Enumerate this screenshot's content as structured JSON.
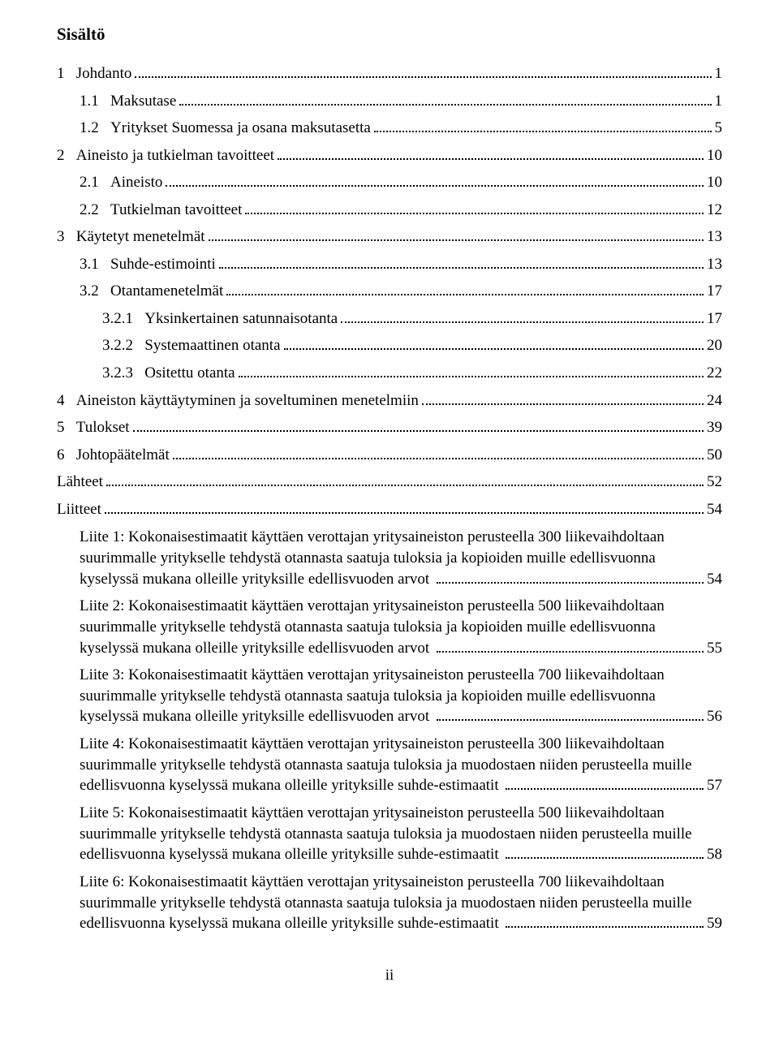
{
  "title": "Sisältö",
  "toc": [
    {
      "num": "1",
      "label": "Johdanto",
      "page": "1",
      "indent": 0
    },
    {
      "num": "1.1",
      "label": "Maksutase",
      "page": "1",
      "indent": 1
    },
    {
      "num": "1.2",
      "label": "Yritykset Suomessa ja osana maksutasetta",
      "page": "5",
      "indent": 1
    },
    {
      "num": "2",
      "label": "Aineisto ja tutkielman tavoitteet",
      "page": "10",
      "indent": 0
    },
    {
      "num": "2.1",
      "label": "Aineisto",
      "page": "10",
      "indent": 1
    },
    {
      "num": "2.2",
      "label": "Tutkielman tavoitteet",
      "page": "12",
      "indent": 1
    },
    {
      "num": "3",
      "label": "Käytetyt menetelmät",
      "page": "13",
      "indent": 0
    },
    {
      "num": "3.1",
      "label": "Suhde-estimointi",
      "page": "13",
      "indent": 1
    },
    {
      "num": "3.2",
      "label": "Otantamenetelmät",
      "page": "17",
      "indent": 1
    },
    {
      "num": "3.2.1",
      "label": "Yksinkertainen satunnaisotanta",
      "page": "17",
      "indent": 2
    },
    {
      "num": "3.2.2",
      "label": "Systemaattinen otanta",
      "page": "20",
      "indent": 2
    },
    {
      "num": "3.2.3",
      "label": "Ositettu otanta",
      "page": "22",
      "indent": 2
    },
    {
      "num": "4",
      "label": "Aineiston käyttäytyminen ja soveltuminen menetelmiin",
      "page": "24",
      "indent": 0
    },
    {
      "num": "5",
      "label": "Tulokset",
      "page": "39",
      "indent": 0
    },
    {
      "num": "6",
      "label": "Johtopäätelmät",
      "page": "50",
      "indent": 0
    },
    {
      "num": "",
      "label": "Lähteet",
      "page": "52",
      "indent": 0
    },
    {
      "num": "",
      "label": "Liitteet",
      "page": "54",
      "indent": 0
    }
  ],
  "appendices": [
    {
      "text": "Liite 1: Kokonaisestimaatit käyttäen verottajan yritysaineiston perusteella 300 liikevaihdoltaan suurimmalle yritykselle tehdystä otannasta saatuja tuloksia ja kopioiden muille edellisvuonna kyselyssä mukana olleille yrityksille edellisvuoden arvot",
      "page": "54"
    },
    {
      "text": "Liite 2: Kokonaisestimaatit käyttäen verottajan yritysaineiston perusteella 500 liikevaihdoltaan suurimmalle yritykselle tehdystä otannasta saatuja tuloksia ja kopioiden muille edellisvuonna kyselyssä mukana olleille yrityksille edellisvuoden arvot",
      "page": "55"
    },
    {
      "text": "Liite 3: Kokonaisestimaatit käyttäen verottajan yritysaineiston perusteella 700 liikevaihdoltaan suurimmalle yritykselle tehdystä otannasta saatuja tuloksia ja kopioiden muille edellisvuonna kyselyssä mukana olleille yrityksille edellisvuoden arvot",
      "page": "56"
    },
    {
      "text": "Liite 4: Kokonaisestimaatit käyttäen verottajan yritysaineiston perusteella 300 liikevaihdoltaan suurimmalle yritykselle tehdystä otannasta saatuja tuloksia ja muodostaen niiden perusteella muille edellisvuonna kyselyssä mukana olleille yrityksille suhde-estimaatit",
      "page": "57"
    },
    {
      "text": "Liite 5: Kokonaisestimaatit käyttäen verottajan yritysaineiston perusteella 500 liikevaihdoltaan suurimmalle yritykselle tehdystä otannasta saatuja tuloksia ja muodostaen niiden perusteella muille edellisvuonna kyselyssä mukana olleille yrityksille suhde-estimaatit",
      "page": "58"
    },
    {
      "text": "Liite 6: Kokonaisestimaatit käyttäen verottajan yritysaineiston perusteella 700 liikevaihdoltaan suurimmalle yritykselle tehdystä otannasta saatuja tuloksia ja muodostaen niiden perusteella muille edellisvuonna kyselyssä mukana olleille yrityksille suhde-estimaatit",
      "page": "59"
    }
  ],
  "footer": "ii"
}
